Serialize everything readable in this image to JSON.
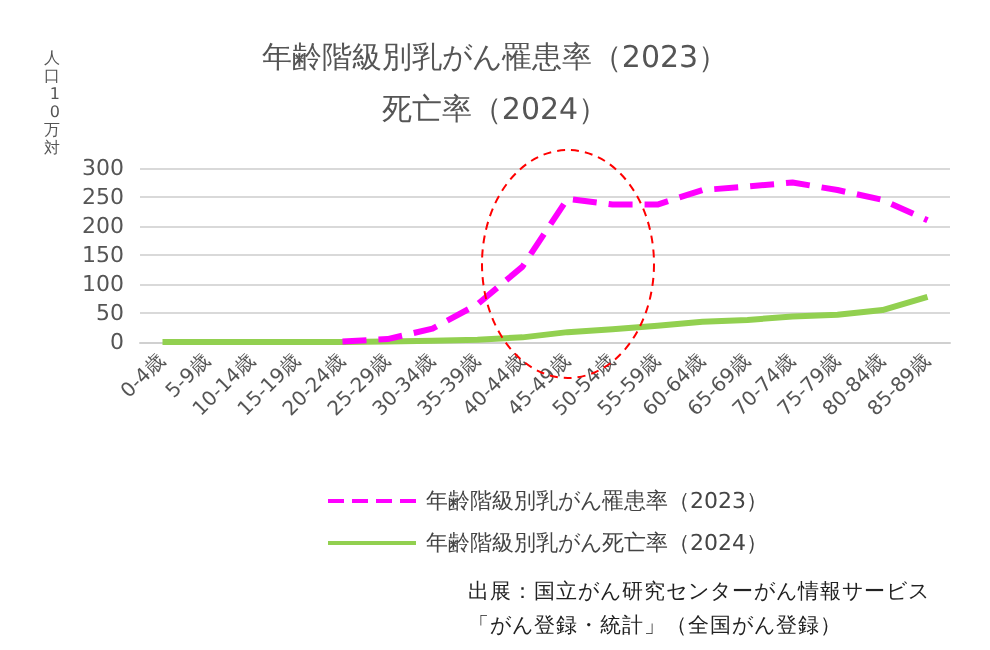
{
  "chart_data": {
    "type": "line",
    "title": "年齢階級別乳がん罹患率（2023）",
    "subtitle": "死亡率（2024）",
    "ylabel": "人口10万対",
    "categories": [
      "0-4歳",
      "5-9歳",
      "10-14歳",
      "15-19歳",
      "20-24歳",
      "25-29歳",
      "30-34歳",
      "35-39歳",
      "40-44歳",
      "45-49歳",
      "50-54歳",
      "55-59歳",
      "60-64歳",
      "65-69歳",
      "70-74歳",
      "75-79歳",
      "80-84歳",
      "85-89歳"
    ],
    "series": [
      {
        "name": "年齢階級別乳がん罹患率（2023）",
        "color": "#ff00ff",
        "line_style": "dashed",
        "values": [
          null,
          null,
          null,
          null,
          1,
          5,
          23,
          65,
          130,
          247,
          237,
          237,
          262,
          268,
          275,
          262,
          245,
          210
        ]
      },
      {
        "name": "年齢階級別乳がん死亡率（2024）",
        "color": "#92d050",
        "line_style": "solid",
        "values": [
          0,
          0,
          0,
          0,
          0,
          1,
          2,
          4,
          8,
          17,
          22,
          28,
          35,
          38,
          44,
          47,
          55,
          78
        ]
      }
    ],
    "ylim": [
      0,
      300
    ],
    "yticks": [
      0,
      50,
      100,
      150,
      200,
      250,
      300
    ],
    "grid": "y",
    "legend": "bottom",
    "marker": "none",
    "annotations": [
      "出展：国立がん研究センターがん情報サービス",
      "「がん登録・統計」（全国がん登録）"
    ]
  }
}
